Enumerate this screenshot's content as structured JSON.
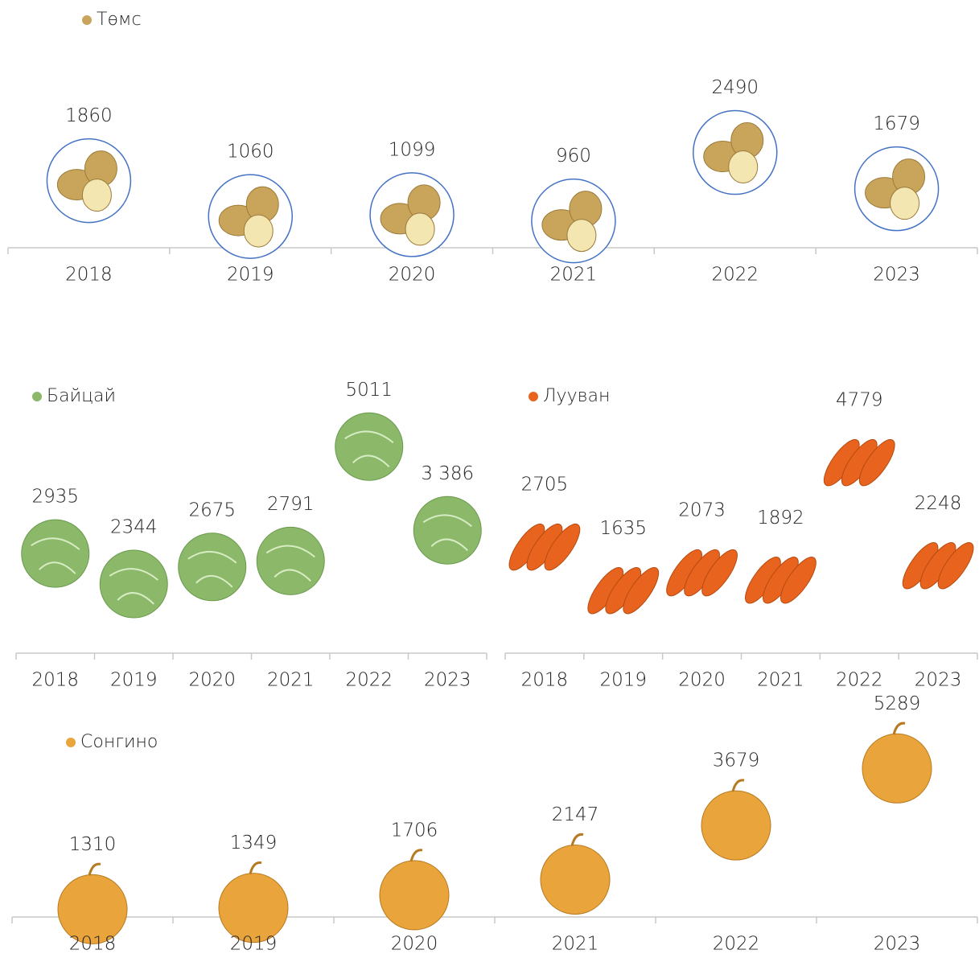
{
  "chart_data": [
    {
      "type": "scatter",
      "categories": [
        "2018",
        "2019",
        "2020",
        "2021",
        "2022",
        "2023"
      ],
      "series": [
        {
          "name": "Төмс",
          "color": "#c9a55c",
          "values": [
            1860,
            1060,
            1099,
            960,
            2490,
            1679
          ]
        }
      ]
    },
    {
      "type": "scatter",
      "categories": [
        "2018",
        "2019",
        "2020",
        "2021",
        "2022",
        "2023"
      ],
      "series": [
        {
          "name": "Байцай",
          "color": "#8cb86a",
          "values": [
            2935,
            2344,
            2675,
            2791,
            5011,
            3386
          ],
          "value_labels": [
            "2935",
            "2344",
            "2675",
            "2791",
            "5011",
            "3 386"
          ]
        }
      ]
    },
    {
      "type": "scatter",
      "categories": [
        "2018",
        "2019",
        "2020",
        "2021",
        "2022",
        "2023"
      ],
      "series": [
        {
          "name": "Лууван",
          "color": "#e8641e",
          "values": [
            2705,
            1635,
            2073,
            1892,
            4779,
            2248
          ]
        }
      ]
    },
    {
      "type": "scatter",
      "categories": [
        "2018",
        "2019",
        "2020",
        "2021",
        "2022",
        "2023"
      ],
      "series": [
        {
          "name": "Сонгино",
          "color": "#e9a43c",
          "values": [
            1310,
            1349,
            1706,
            2147,
            3679,
            5289
          ]
        }
      ]
    }
  ]
}
